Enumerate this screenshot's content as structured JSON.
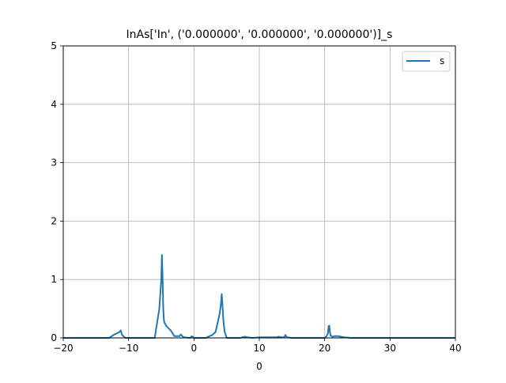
{
  "chart_data": {
    "type": "line",
    "title": "InAs['In', ('0.000000', '0.000000', '0.000000')]_s",
    "xlabel": "0",
    "ylabel": "",
    "xlim": [
      -20,
      40
    ],
    "ylim": [
      0,
      5
    ],
    "grid": true,
    "legend_position": "upper right",
    "xticks": [
      -20,
      -10,
      0,
      10,
      20,
      30,
      40
    ],
    "yticks": [
      0,
      1,
      2,
      3,
      4,
      5
    ],
    "xtick_labels": [
      "−20",
      "−10",
      "0",
      "10",
      "20",
      "30",
      "40"
    ],
    "ytick_labels": [
      "0",
      "1",
      "2",
      "3",
      "4",
      "5"
    ],
    "colors": {
      "series": "#1f77b4",
      "grid": "#b0b0b0"
    },
    "series": [
      {
        "name": "s",
        "x": [
          -20,
          -13,
          -12.3,
          -11.8,
          -11.4,
          -11.2,
          -11.0,
          -10.5,
          -6.0,
          -5.3,
          -5.0,
          -4.9,
          -4.8,
          -4.7,
          -4.6,
          -4.5,
          -4.2,
          -3.5,
          -3.0,
          -2.2,
          -2.0,
          -1.8,
          -1.5,
          -0.6,
          -0.3,
          0,
          1.8,
          2.2,
          2.8,
          3.3,
          3.6,
          3.9,
          4.1,
          4.25,
          4.4,
          4.5,
          4.7,
          5.0,
          7.0,
          7.4,
          7.8,
          8.2,
          9,
          10,
          12.5,
          13,
          13.5,
          13.8,
          14.0,
          14.2,
          15,
          20.0,
          20.3,
          20.5,
          20.6,
          20.7,
          20.8,
          20.9,
          21.2,
          21.5,
          22.0,
          22.5,
          23.0,
          24,
          40
        ],
        "values": [
          0,
          0,
          0.05,
          0.08,
          0.1,
          0.13,
          0.05,
          0,
          0,
          0.5,
          1.0,
          1.42,
          1.0,
          0.5,
          0.3,
          0.26,
          0.2,
          0.12,
          0.03,
          0.03,
          0.06,
          0.03,
          0.01,
          0.0,
          0.03,
          0,
          0,
          0.02,
          0.05,
          0.1,
          0.25,
          0.4,
          0.55,
          0.75,
          0.5,
          0.3,
          0.1,
          0,
          0,
          0.01,
          0.02,
          0.01,
          0,
          0.01,
          0.01,
          0.02,
          0.01,
          0.01,
          0.05,
          0.01,
          0,
          0,
          0.03,
          0.08,
          0.2,
          0.21,
          0.1,
          0.04,
          0.02,
          0.03,
          0.03,
          0.02,
          0.01,
          0,
          0
        ]
      }
    ]
  }
}
